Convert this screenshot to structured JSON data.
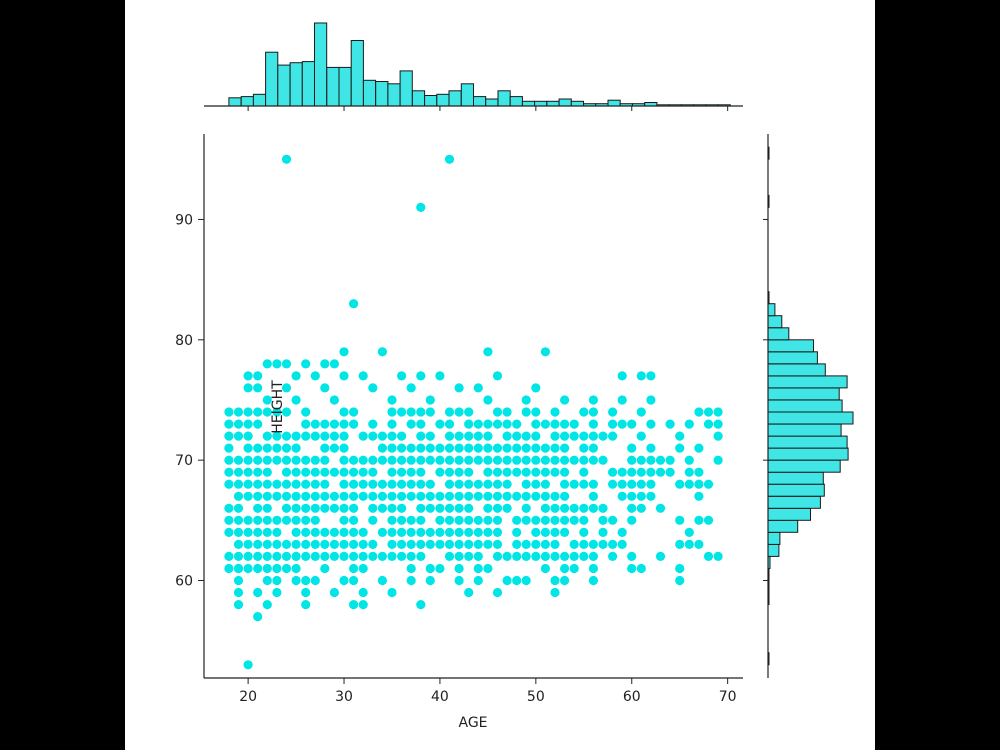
{
  "chart_data": {
    "type": "scatter",
    "title": "",
    "xlabel": "AGE",
    "ylabel": "HEIGHT",
    "xlim": [
      15.4,
      71.6
    ],
    "ylim": [
      51.9,
      97.1
    ],
    "xticks": [
      20,
      30,
      40,
      50,
      60,
      70
    ],
    "yticks": [
      60,
      70,
      80,
      90
    ],
    "grid": false,
    "legend": "none",
    "marker_color": "#00e5e5",
    "hist_fill": "#40e6e6",
    "hist_edge": "#1a1a1a",
    "core": {
      "age_range": [
        18,
        69
      ],
      "height_range": [
        60,
        74
      ],
      "density": 0.88,
      "age_fade_start": 52
    },
    "extra_points": [
      [
        24,
        95
      ],
      [
        41,
        95
      ],
      [
        38,
        91
      ],
      [
        31,
        83
      ],
      [
        30,
        79
      ],
      [
        34,
        79
      ],
      [
        45,
        79
      ],
      [
        51,
        79
      ],
      [
        22,
        78
      ],
      [
        23,
        78
      ],
      [
        24,
        78
      ],
      [
        26,
        78
      ],
      [
        28,
        78
      ],
      [
        29,
        78
      ],
      [
        20,
        77
      ],
      [
        21,
        77
      ],
      [
        25,
        77
      ],
      [
        27,
        77
      ],
      [
        30,
        77
      ],
      [
        32,
        77
      ],
      [
        36,
        77
      ],
      [
        38,
        77
      ],
      [
        40,
        77
      ],
      [
        46,
        77
      ],
      [
        59,
        77
      ],
      [
        61,
        77
      ],
      [
        62,
        77
      ],
      [
        20,
        76
      ],
      [
        21,
        76
      ],
      [
        24,
        76
      ],
      [
        28,
        76
      ],
      [
        33,
        76
      ],
      [
        37,
        76
      ],
      [
        42,
        76
      ],
      [
        44,
        76
      ],
      [
        50,
        76
      ],
      [
        22,
        75
      ],
      [
        25,
        75
      ],
      [
        29,
        75
      ],
      [
        35,
        75
      ],
      [
        39,
        75
      ],
      [
        45,
        75
      ],
      [
        49,
        75
      ],
      [
        53,
        75
      ],
      [
        56,
        75
      ],
      [
        59,
        75
      ],
      [
        62,
        75
      ],
      [
        19,
        61
      ],
      [
        21,
        61
      ],
      [
        24,
        61
      ],
      [
        19,
        59
      ],
      [
        21,
        59
      ],
      [
        23,
        59
      ],
      [
        26,
        59
      ],
      [
        29,
        59
      ],
      [
        32,
        59
      ],
      [
        35,
        59
      ],
      [
        43,
        59
      ],
      [
        46,
        59
      ],
      [
        52,
        59
      ],
      [
        19,
        58
      ],
      [
        22,
        58
      ],
      [
        26,
        58
      ],
      [
        31,
        58
      ],
      [
        32,
        58
      ],
      [
        38,
        58
      ],
      [
        21,
        57
      ],
      [
        20,
        53
      ]
    ],
    "marginal_x": {
      "bin_start": 18,
      "bin_width": 1.275,
      "counts": [
        7,
        8,
        10,
        46,
        35,
        37,
        38,
        71,
        33,
        33,
        56,
        22,
        21,
        19,
        30,
        13,
        9,
        10,
        13,
        19,
        8,
        6,
        13,
        8,
        4,
        4,
        4,
        6,
        4,
        2,
        2,
        5,
        2,
        2,
        3,
        1,
        1,
        1,
        1,
        1,
        1,
        0
      ]
    },
    "marginal_y": {
      "bin_start": 53,
      "bin_width": 1,
      "counts": [
        1,
        0,
        0,
        0,
        0,
        1,
        1,
        1,
        2,
        11,
        12,
        30,
        43,
        53,
        57,
        56,
        73,
        81,
        80,
        74,
        86,
        75,
        72,
        80,
        58,
        50,
        46,
        21,
        14,
        7,
        1,
        0,
        0,
        0,
        0,
        0,
        0,
        0,
        1,
        0,
        0,
        0,
        1
      ]
    }
  }
}
